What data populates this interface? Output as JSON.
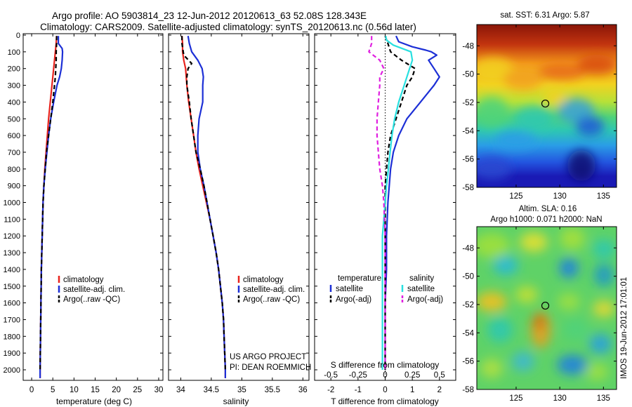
{
  "header": {
    "title_line1": "Argo profile: AO 5903814_23 12-Jun-2012 20120613_63 52.08S 128.343E",
    "title_line2": "Climatology: CARS2009. Satellite-adjusted climatology: synTS_20120613.nc (0.56d later)"
  },
  "colors": {
    "red": "#e8231c",
    "blue": "#1c2fd6",
    "black": "#000000",
    "cyan": "#28e0e0",
    "magenta": "#e020e0"
  },
  "credits": {
    "line1": "US ARGO PROJECT",
    "line2": "PI: DEAN ROEMMICH"
  },
  "chart_data": [
    {
      "type": "line",
      "panel": "temperature",
      "xlabel": "temperature (deg C)",
      "xlim": [
        -2,
        31
      ],
      "xticks": [
        0,
        5,
        10,
        15,
        20,
        25,
        30
      ],
      "ylim": [
        0,
        2050
      ],
      "yticks": [
        0,
        100,
        200,
        300,
        400,
        500,
        600,
        700,
        800,
        900,
        1000,
        1100,
        1200,
        1300,
        1400,
        1500,
        1600,
        1700,
        1800,
        1900,
        2000
      ],
      "yreverse": true,
      "legend": [
        "climatology",
        "satellite-adj. clim.",
        "Argo(..raw -QC)"
      ],
      "series": [
        {
          "name": "climatology",
          "color": "red",
          "dash": false,
          "depth": [
            5,
            50,
            100,
            150,
            200,
            250,
            300,
            400,
            500,
            600,
            700,
            800,
            900,
            1000,
            1200,
            1400,
            1600,
            1800,
            2000,
            2050
          ],
          "values": [
            5.9,
            5.8,
            5.6,
            5.4,
            5.2,
            5.0,
            4.8,
            4.4,
            4.0,
            3.7,
            3.4,
            3.1,
            2.9,
            2.7,
            2.5,
            2.3,
            2.2,
            2.1,
            2.0,
            2.0
          ]
        },
        {
          "name": "satellite-adj. clim.",
          "color": "blue",
          "dash": false,
          "depth": [
            5,
            50,
            80,
            100,
            150,
            200,
            250,
            300,
            400,
            500,
            600,
            700,
            800,
            900,
            1000,
            1200,
            1400,
            1600,
            1800,
            2000,
            2050
          ],
          "values": [
            6.3,
            6.3,
            7.2,
            7.3,
            7.2,
            7.0,
            6.6,
            6.0,
            5.2,
            4.5,
            4.0,
            3.6,
            3.2,
            2.9,
            2.7,
            2.5,
            2.3,
            2.2,
            2.1,
            2.0,
            2.0
          ]
        },
        {
          "name": "Argo(..raw -QC)",
          "color": "black",
          "dash": true,
          "depth": [
            5,
            50,
            100,
            150,
            200,
            250,
            300,
            400,
            500,
            600,
            700,
            800,
            900,
            1000,
            1200,
            1400,
            1600,
            1800,
            2000
          ],
          "values": [
            5.9,
            5.9,
            5.8,
            5.8,
            5.7,
            5.6,
            5.4,
            5.0,
            4.5,
            4.0,
            3.5,
            3.2,
            2.9,
            2.7,
            2.5,
            2.3,
            2.2,
            2.1,
            2.0
          ]
        }
      ]
    },
    {
      "type": "line",
      "panel": "salinity",
      "xlabel": "salinity",
      "xlim": [
        33.8,
        36.1
      ],
      "xticks": [
        34,
        34.5,
        35,
        35.5,
        36
      ],
      "ylim": [
        0,
        2050
      ],
      "yreverse": true,
      "legend": [
        "climatology",
        "satellite-adj. clim.",
        "Argo(..raw -QC)"
      ],
      "series": [
        {
          "name": "climatology",
          "color": "red",
          "dash": false,
          "depth": [
            5,
            50,
            100,
            150,
            200,
            300,
            400,
            500,
            600,
            700,
            800,
            900,
            1000,
            1100,
            1200,
            1300,
            1400,
            1500,
            1600,
            1700,
            1800,
            1900,
            2000,
            2050
          ],
          "values": [
            34.02,
            34.03,
            34.03,
            34.05,
            34.08,
            34.1,
            34.13,
            34.17,
            34.21,
            34.25,
            34.3,
            34.36,
            34.42,
            34.48,
            34.53,
            34.58,
            34.62,
            34.65,
            34.68,
            34.7,
            34.71,
            34.72,
            34.73,
            34.73
          ]
        },
        {
          "name": "satellite-adj. clim.",
          "color": "blue",
          "dash": false,
          "depth": [
            5,
            50,
            100,
            150,
            200,
            250,
            300,
            400,
            500,
            600,
            700,
            800,
            900,
            1000,
            1100,
            1200,
            1300,
            1400,
            1500,
            1600,
            1700,
            1800,
            1900,
            2000,
            2050
          ],
          "values": [
            34.12,
            34.14,
            34.18,
            34.28,
            34.35,
            34.37,
            34.36,
            34.36,
            34.3,
            34.28,
            34.28,
            34.32,
            34.38,
            34.43,
            34.48,
            34.53,
            34.58,
            34.62,
            34.65,
            34.68,
            34.7,
            34.71,
            34.72,
            34.73,
            34.73
          ]
        },
        {
          "name": "Argo(..raw -QC)",
          "color": "black",
          "dash": true,
          "depth": [
            5,
            50,
            120,
            170,
            200,
            250,
            300,
            400,
            500,
            600,
            700,
            800,
            900,
            1000,
            1100,
            1200,
            1300,
            1400,
            1500,
            1600,
            1700,
            1800,
            1900,
            2000
          ],
          "values": [
            34.02,
            34.02,
            34.05,
            34.18,
            34.12,
            34.1,
            34.1,
            34.14,
            34.17,
            34.21,
            34.25,
            34.32,
            34.38,
            34.43,
            34.48,
            34.53,
            34.58,
            34.62,
            34.65,
            34.68,
            34.7,
            34.71,
            34.72,
            34.73
          ]
        }
      ]
    },
    {
      "type": "line",
      "panel": "difference",
      "xlabel": "T difference from climatology",
      "xlabel_top": "S difference from climatology",
      "xlim": [
        -2.6,
        2.6
      ],
      "xticks": [
        -2,
        -1,
        0,
        1,
        2
      ],
      "xticks_top_labels": [
        "-0.5",
        "-0.25",
        "0",
        "0.25",
        "0.5"
      ],
      "xticks_top_pos": [
        -2,
        -1,
        0,
        1,
        2
      ],
      "ylim": [
        0,
        2050
      ],
      "yreverse": true,
      "legend_titles": [
        "temperature",
        "salinity"
      ],
      "legend": [
        "satellite",
        "Argo(-adj)",
        "satellite",
        "Argo(-adj)"
      ],
      "series": [
        {
          "name": "satellite",
          "group": "temperature",
          "color": "blue",
          "dash": false,
          "depth": [
            5,
            40,
            70,
            90,
            100,
            120,
            150,
            200,
            250,
            300,
            400,
            500,
            600,
            700,
            800,
            900,
            1000,
            1200,
            1400,
            1600,
            1800,
            2000
          ],
          "values": [
            0.4,
            0.5,
            1.0,
            1.5,
            1.7,
            1.9,
            1.6,
            1.8,
            2.0,
            1.8,
            1.3,
            0.8,
            0.5,
            0.3,
            0.2,
            0.15,
            0.1,
            0.05,
            0.05,
            0.0,
            0.0,
            0.0
          ]
        },
        {
          "name": "Argo(-adj)",
          "group": "temperature",
          "color": "black",
          "dash": true,
          "depth": [
            5,
            50,
            100,
            150,
            200,
            250,
            300,
            400,
            500,
            600,
            700,
            800,
            900,
            1000,
            1200,
            1400,
            1600,
            1800,
            2000
          ],
          "values": [
            0.0,
            0.1,
            0.2,
            0.6,
            1.1,
            1.0,
            0.8,
            0.6,
            0.4,
            0.2,
            0.1,
            0.05,
            0.0,
            0.0,
            0.0,
            0.0,
            0.0,
            0.0,
            0.0
          ]
        },
        {
          "name": "satellite",
          "group": "salinity",
          "color": "cyan",
          "dash": false,
          "depth": [
            5,
            30,
            60,
            100,
            150,
            200,
            300,
            400,
            500,
            600,
            700,
            800,
            900,
            1000,
            1100,
            1200,
            1400,
            1600,
            1800,
            2000
          ],
          "values": [
            0.02,
            0.05,
            0.3,
            0.95,
            1.0,
            0.9,
            0.7,
            0.5,
            0.35,
            0.25,
            0.18,
            0.12,
            0.05,
            0.0,
            -0.05,
            -0.1,
            -0.1,
            -0.1,
            -0.1,
            -0.1
          ]
        },
        {
          "name": "Argo(-adj)",
          "group": "salinity",
          "color": "magenta",
          "dash": true,
          "depth": [
            5,
            50,
            100,
            150,
            200,
            250,
            300,
            400,
            500,
            600,
            700,
            800,
            900,
            1000,
            1200,
            1400,
            1600,
            1800,
            2000
          ],
          "values": [
            -0.5,
            -0.5,
            -0.6,
            -0.2,
            -0.05,
            -0.2,
            -0.2,
            -0.25,
            -0.3,
            -0.3,
            -0.25,
            -0.2,
            -0.1,
            -0.05,
            0.0,
            0.0,
            0.0,
            0.0,
            0.0
          ]
        }
      ]
    },
    {
      "type": "heatmap",
      "panel": "sst-map",
      "title": "sat. SST: 6.31 Argo: 5.87",
      "xlim": [
        120.5,
        136.5
      ],
      "ylim": [
        -58,
        -46.5
      ],
      "xticks": [
        125,
        130,
        135
      ],
      "yticks": [
        -48,
        -50,
        -52,
        -54,
        -56,
        -58
      ],
      "marker": {
        "lon": 128.343,
        "lat": -52.08
      }
    },
    {
      "type": "heatmap",
      "panel": "sla-map",
      "title_line1": "Altim. SLA: 0.16",
      "title_line2": "Argo h1000: 0.071 h2000: NaN",
      "side_label": "IMOS 19-Jun-2012 17:01:01",
      "xlim": [
        120.5,
        136.5
      ],
      "ylim": [
        -58,
        -46.5
      ],
      "xticks": [
        125,
        130,
        135
      ],
      "yticks": [
        -48,
        -50,
        -52,
        -54,
        -56,
        -58
      ],
      "marker": {
        "lon": 128.343,
        "lat": -52.08
      }
    }
  ]
}
